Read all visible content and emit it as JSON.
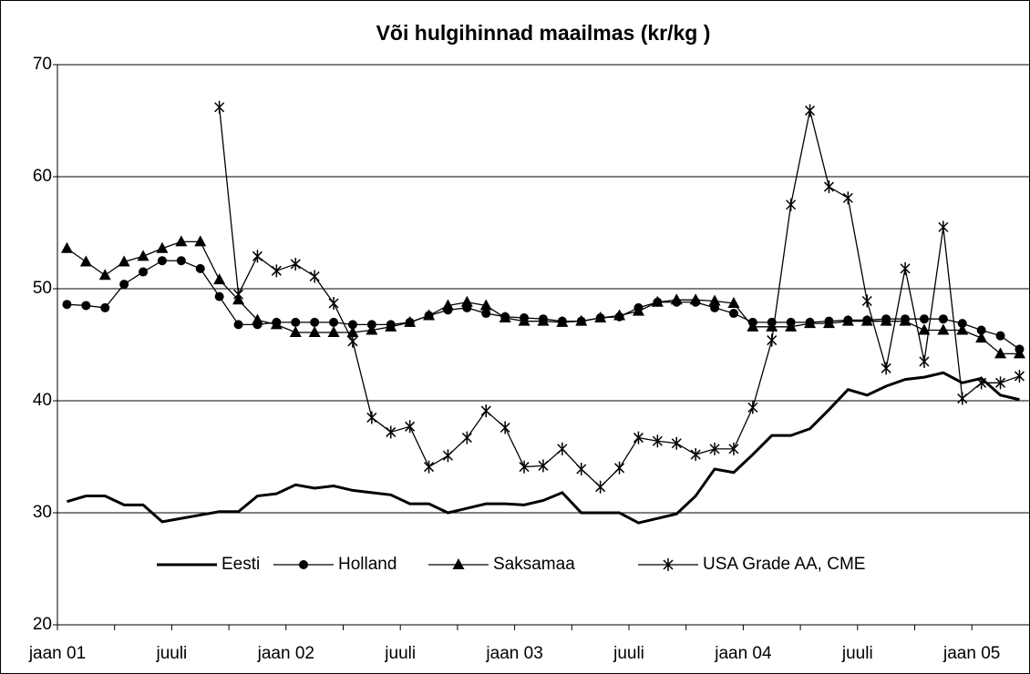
{
  "chart_data": {
    "type": "line",
    "title": "Või hulgihinnad maailmas (kr/kg )",
    "categories": [
      "jaan 01",
      null,
      null,
      null,
      null,
      null,
      "juuli",
      null,
      null,
      null,
      null,
      null,
      "jaan 02",
      null,
      null,
      null,
      null,
      null,
      "juuli",
      null,
      null,
      null,
      null,
      null,
      "jaan 03",
      null,
      null,
      null,
      null,
      null,
      "juuli",
      null,
      null,
      null,
      null,
      null,
      "jaan 04",
      null,
      null,
      null,
      null,
      null,
      "juuli",
      null,
      null,
      null,
      null,
      null,
      "jaan 05",
      null,
      null
    ],
    "ylim": [
      20,
      70
    ],
    "yticks": [
      20,
      30,
      40,
      50,
      60,
      70
    ],
    "grid": true,
    "legend": "bottom",
    "series": [
      {
        "name": "Eesti",
        "color": "#000000",
        "marker": "none",
        "values": [
          31,
          31.5,
          31.5,
          30.7,
          30.7,
          29.2,
          29.5,
          29.8,
          30.1,
          30.1,
          31.5,
          31.7,
          32.5,
          32.2,
          32.4,
          32,
          31.8,
          31.6,
          30.8,
          30.8,
          30,
          30.4,
          30.8,
          30.8,
          30.7,
          31.1,
          31.8,
          30,
          30,
          30,
          29.1,
          29.5,
          29.9,
          31.5,
          33.9,
          33.6,
          35.2,
          36.9,
          36.9,
          37.5,
          39.2,
          41,
          40.5,
          41.3,
          41.9,
          42.1,
          42.5,
          41.6,
          42,
          40.5,
          40.1
        ]
      },
      {
        "name": "Holland",
        "color": "#000000",
        "marker": "circle",
        "values": [
          48.6,
          48.5,
          48.3,
          50.4,
          51.5,
          52.5,
          52.5,
          51.8,
          49.3,
          46.8,
          46.8,
          47,
          47,
          47,
          47,
          46.8,
          46.8,
          46.8,
          47,
          47.6,
          48.1,
          48.3,
          47.8,
          47.5,
          47.4,
          47.3,
          47.1,
          47.1,
          47.4,
          47.5,
          48.3,
          48.8,
          48.8,
          48.8,
          48.3,
          47.8,
          47,
          47,
          47,
          47,
          47.1,
          47.2,
          47.2,
          47.3,
          47.3,
          47.3,
          47.3,
          46.9,
          46.3,
          45.8,
          44.6
        ]
      },
      {
        "name": "Saksamaa",
        "color": "#000000",
        "marker": "triangle",
        "values": [
          53.6,
          52.4,
          51.2,
          52.4,
          52.9,
          53.6,
          54.2,
          54.2,
          50.8,
          49,
          47.2,
          46.8,
          46.1,
          46.1,
          46.1,
          46.1,
          46.3,
          46.6,
          47,
          47.6,
          48.5,
          48.8,
          48.5,
          47.4,
          47.1,
          47.1,
          47,
          47.1,
          47.4,
          47.6,
          48,
          48.8,
          49,
          49,
          48.9,
          48.7,
          46.6,
          46.6,
          46.6,
          46.9,
          46.9,
          47.1,
          47.1,
          47.1,
          47.1,
          46.3,
          46.3,
          46.3,
          45.6,
          44.2,
          44.2
        ]
      },
      {
        "name": "USA Grade AA, CME",
        "color": "#000000",
        "marker": "star",
        "values": [
          null,
          null,
          null,
          null,
          null,
          null,
          null,
          null,
          66.2,
          49.5,
          52.9,
          51.6,
          52.2,
          51.1,
          48.7,
          45.3,
          38.5,
          37.2,
          37.7,
          34.1,
          35.1,
          36.7,
          39.1,
          37.6,
          34.1,
          34.2,
          35.7,
          33.9,
          32.3,
          34,
          36.7,
          36.4,
          36.2,
          35.2,
          35.7,
          35.7,
          39.4,
          45.4,
          57.5,
          65.9,
          59.1,
          58.1,
          48.9,
          42.9,
          51.8,
          43.5,
          55.5,
          40.2,
          41.6,
          41.6,
          42.2
        ]
      }
    ]
  }
}
